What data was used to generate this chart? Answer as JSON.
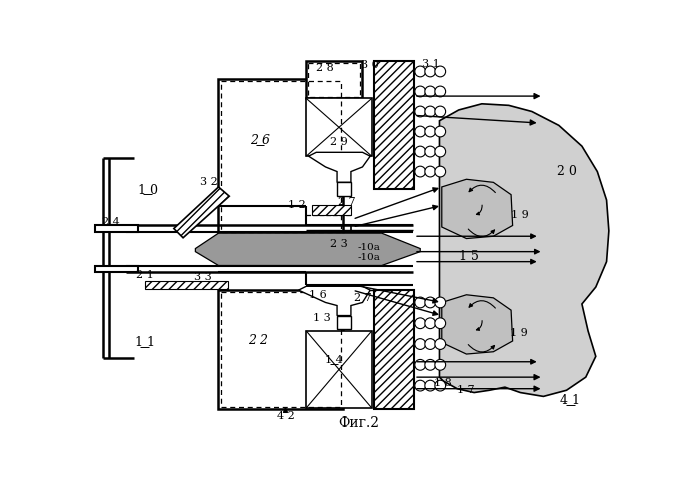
{
  "background": "#ffffff",
  "title": "Фиг.2"
}
